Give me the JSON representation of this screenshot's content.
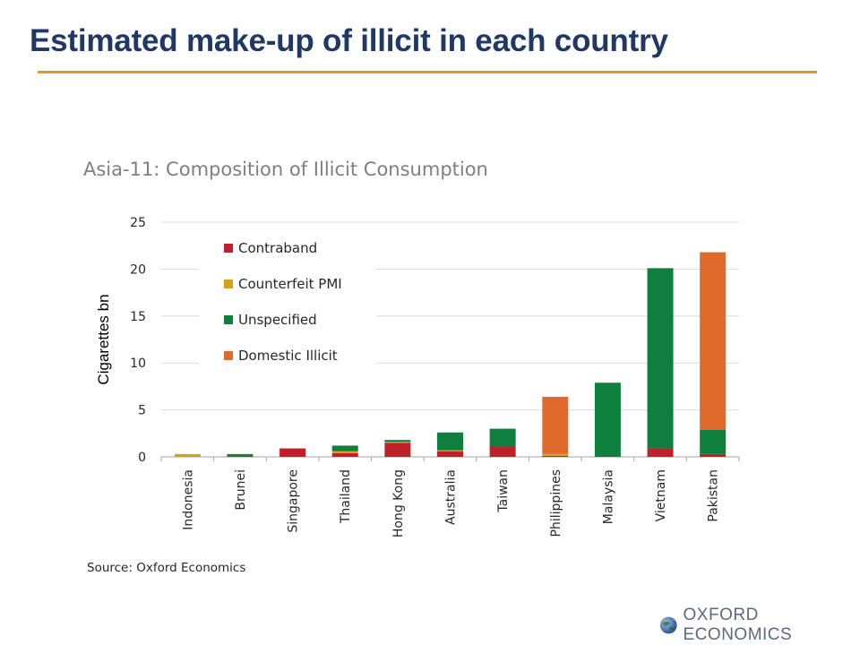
{
  "slide": {
    "title": "Estimated make-up of illicit in each country",
    "brand": "OXFORD ECONOMICS"
  },
  "colors": {
    "title": "#1f3864",
    "rule": "#c9a227",
    "contraband": "#c0202a",
    "counterfeit": "#d4a017",
    "unspecified": "#0e7f3c",
    "domestic": "#e06a2c"
  },
  "chart_data": {
    "type": "bar",
    "stacked": true,
    "title": "Asia-11: Composition of Illicit Consumption",
    "xlabel": "",
    "ylabel": "Cigarettes bn",
    "ylim": [
      0,
      25
    ],
    "yticks": [
      0,
      5,
      10,
      15,
      20,
      25
    ],
    "grid": true,
    "legend_position": "top-left",
    "categories": [
      "Indonesia",
      "Brunei",
      "Singapore",
      "Thailand",
      "Hong Kong",
      "Australia",
      "Taiwan",
      "Philippines",
      "Malaysia",
      "Vietnam",
      "Pakistan"
    ],
    "series": [
      {
        "name": "Contraband",
        "color": "#c0202a",
        "values": [
          0,
          0.1,
          0.9,
          0.4,
          1.5,
          0.6,
          1.1,
          0.1,
          0,
          0.9,
          0.3
        ]
      },
      {
        "name": "Counterfeit PMI",
        "color": "#d4a017",
        "values": [
          0.3,
          0,
          0,
          0.2,
          0.1,
          0.1,
          0,
          0.2,
          0,
          0,
          0
        ]
      },
      {
        "name": "Unspecified",
        "color": "#0e7f3c",
        "values": [
          0,
          0.2,
          0,
          0.6,
          0.2,
          1.9,
          1.9,
          0,
          7.9,
          19.2,
          2.6
        ]
      },
      {
        "name": "Domestic Illicit",
        "color": "#e06a2c",
        "values": [
          0,
          0,
          0,
          0,
          0,
          0,
          0,
          6.1,
          0,
          0,
          18.9
        ]
      }
    ],
    "source": "Source: Oxford Economics"
  }
}
